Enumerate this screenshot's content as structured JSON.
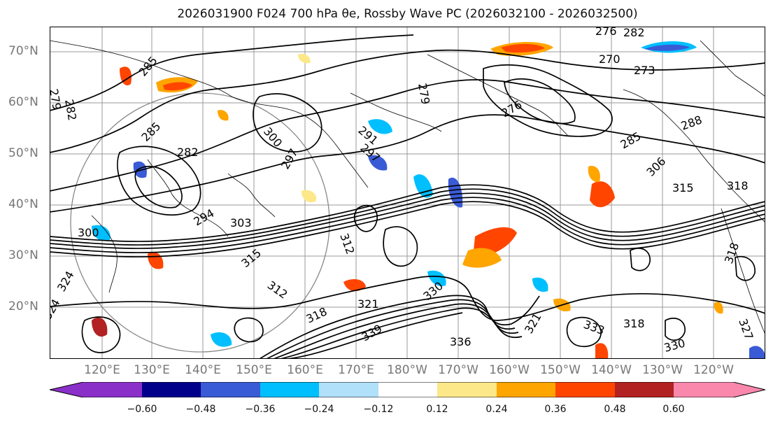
{
  "title": "2026031900 F024 700 hPa θe, Rossby Wave PC (2026032100 - 2026032500)",
  "map": {
    "lat_labels": [
      "70°N",
      "60°N",
      "50°N",
      "40°N",
      "30°N",
      "20°N"
    ],
    "lon_labels": [
      "120°E",
      "130°E",
      "140°E",
      "150°E",
      "160°E",
      "170°E",
      "180°W",
      "170°W",
      "160°W",
      "150°W",
      "140°W",
      "130°W",
      "120°W"
    ],
    "contour_labels": [
      "276",
      "282",
      "285",
      "270",
      "273",
      "279",
      "276",
      "285",
      "288",
      "279",
      "282",
      "285",
      "300",
      "297",
      "291",
      "297",
      "282",
      "306",
      "315",
      "318",
      "303",
      "300",
      "312",
      "294",
      "315",
      "312",
      "324",
      "324",
      "318",
      "321",
      "339",
      "336",
      "333",
      "330",
      "318",
      "321",
      "327",
      "318",
      "330"
    ],
    "colors": {
      "coastline": "#000000",
      "contour": "#000000",
      "grid": "#9a9a9a",
      "great_circle": "#888888"
    }
  },
  "colorbar": {
    "levels": [
      "−0.60",
      "−0.48",
      "−0.36",
      "−0.24",
      "−0.12",
      "0.12",
      "0.24",
      "0.36",
      "0.48",
      "0.60"
    ],
    "colors": [
      "#8b2fc9",
      "#00008b",
      "#3a5bd6",
      "#00bfff",
      "#b0e0fa",
      "#ffffff",
      "#fce889",
      "#ffa500",
      "#ff4500",
      "#b22222",
      "#f988ac",
      "#f988ac"
    ]
  }
}
